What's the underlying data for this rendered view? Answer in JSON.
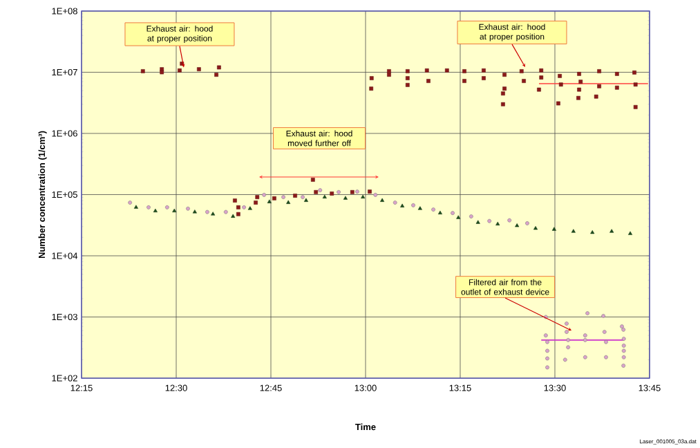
{
  "chart_data": {
    "type": "scatter",
    "xlabel": "Time",
    "ylabel": "Number concentration (1/cm³)",
    "xlim": [
      12.25,
      13.75
    ],
    "ylim": [
      100,
      100000000
    ],
    "log": "y",
    "grid": true,
    "xticks": [
      {
        "value": 12.25,
        "label": "12:15"
      },
      {
        "value": 12.5,
        "label": "12:30"
      },
      {
        "value": 12.75,
        "label": "12:45"
      },
      {
        "value": 13.0,
        "label": "13:00"
      },
      {
        "value": 13.25,
        "label": "13:15"
      },
      {
        "value": 13.5,
        "label": "13:30"
      },
      {
        "value": 13.75,
        "label": "13:45"
      }
    ],
    "yticks": [
      {
        "value": 100,
        "label": "1E+02"
      },
      {
        "value": 1000,
        "label": "1E+03"
      },
      {
        "value": 10000,
        "label": "1E+04"
      },
      {
        "value": 100000,
        "label": "1E+05"
      },
      {
        "value": 1000000,
        "label": "1E+06"
      },
      {
        "value": 10000000,
        "label": "1E+07"
      },
      {
        "value": 100000000,
        "label": "1E+08"
      }
    ],
    "series": [
      {
        "type": "scatter",
        "marker": "square",
        "color": "#8b1a1a",
        "x": [
          12.412,
          12.462,
          12.462,
          12.509,
          12.515,
          12.56,
          12.606,
          12.613,
          12.655,
          12.664,
          12.664,
          12.71,
          12.714,
          12.759,
          12.814,
          12.861,
          12.869,
          12.911,
          12.965,
          13.011,
          13.015,
          13.016,
          13.062,
          13.062,
          13.111,
          13.111,
          13.111,
          13.162,
          13.166,
          13.215,
          13.261,
          13.261,
          13.312,
          13.312,
          13.363,
          13.363,
          13.367,
          13.367,
          13.412,
          13.418,
          13.458,
          13.464,
          13.464,
          13.509,
          13.513,
          13.516,
          13.562,
          13.564,
          13.568,
          13.564,
          13.609,
          13.617,
          13.617,
          13.664,
          13.664,
          13.71,
          13.713,
          13.713
        ],
        "values": [
          10400000,
          11200000,
          10000000,
          10700000,
          13800000,
          11200000,
          9100000,
          12000000,
          80000,
          62000,
          48000,
          74000,
          91000,
          87000,
          96000,
          175000,
          110000,
          104000,
          110000,
          112000,
          5400000,
          8000000,
          10400000,
          9100000,
          10400000,
          8000000,
          6200000,
          10700000,
          7200000,
          10700000,
          10400000,
          7200000,
          10700000,
          8000000,
          4500000,
          3000000,
          9100000,
          5400000,
          10400000,
          7200000,
          5200000,
          10700000,
          8200000,
          3100000,
          8700000,
          6300000,
          3800000,
          9400000,
          7000000,
          5200000,
          4000000,
          10400000,
          5900000,
          9400000,
          5600000,
          9900000,
          6300000,
          2700000
        ]
      },
      {
        "type": "scatter",
        "marker": "circle",
        "color": "#d9a3c9",
        "x": [
          12.378,
          12.427,
          12.476,
          12.531,
          12.582,
          12.631,
          12.679,
          12.732,
          12.783,
          12.834,
          12.88,
          12.929,
          12.978,
          13.026,
          13.078,
          13.126,
          13.179,
          13.23,
          13.279,
          13.327,
          13.38,
          13.427,
          13.476,
          13.476,
          13.48,
          13.48,
          13.48,
          13.48,
          13.531,
          13.531,
          13.535,
          13.535,
          13.527,
          13.586,
          13.58,
          13.58,
          13.58,
          13.628,
          13.631,
          13.635,
          13.635,
          13.677,
          13.681,
          13.682,
          13.682,
          13.682,
          13.682,
          13.681
        ],
        "values": [
          74000,
          62000,
          62000,
          59000,
          52000,
          52000,
          62000,
          99000,
          91000,
          91000,
          118000,
          110000,
          112000,
          99000,
          74000,
          67000,
          57000,
          50000,
          44000,
          37000,
          38000,
          34000,
          1000,
          500,
          390,
          280,
          210,
          150,
          780,
          570,
          420,
          320,
          200,
          1150,
          500,
          420,
          220,
          1040,
          570,
          390,
          220,
          700,
          620,
          440,
          340,
          280,
          220,
          160
        ]
      },
      {
        "type": "scatter",
        "marker": "triangle",
        "color": "#1e4d1e",
        "x": [
          12.394,
          12.445,
          12.495,
          12.549,
          12.597,
          12.65,
          12.695,
          12.746,
          12.796,
          12.843,
          12.892,
          12.947,
          12.993,
          13.044,
          13.097,
          13.144,
          13.197,
          13.245,
          13.297,
          13.349,
          13.4,
          13.449,
          13.498,
          13.549,
          13.599,
          13.65,
          13.699
        ],
        "values": [
          62000,
          54000,
          54000,
          52000,
          48000,
          44000,
          59000,
          76000,
          74000,
          80000,
          91000,
          87000,
          91000,
          80000,
          65000,
          59000,
          50000,
          42000,
          35000,
          33000,
          31000,
          28000,
          27000,
          25000,
          24000,
          25000,
          23000
        ]
      },
      {
        "type": "line",
        "color": "#ff4040",
        "x": [
          13.458,
          13.746
        ],
        "values": [
          6500000,
          6500000
        ]
      },
      {
        "type": "line",
        "color": "#cc33cc",
        "x": [
          13.464,
          13.682
        ],
        "values": [
          420,
          420
        ]
      }
    ],
    "annotations": [
      {
        "text": "Exhaust air: hood at proper position",
        "x": 12.52,
        "y": 12000000
      },
      "Exhaust air: hood at proper position",
      "Exhaust air: hood moved further off",
      {
        "text": "Filtered air from the outlet of exhaust device",
        "x": 13.544,
        "y": 600
      },
      "Laser_001005_03a.dat"
    ]
  }
}
